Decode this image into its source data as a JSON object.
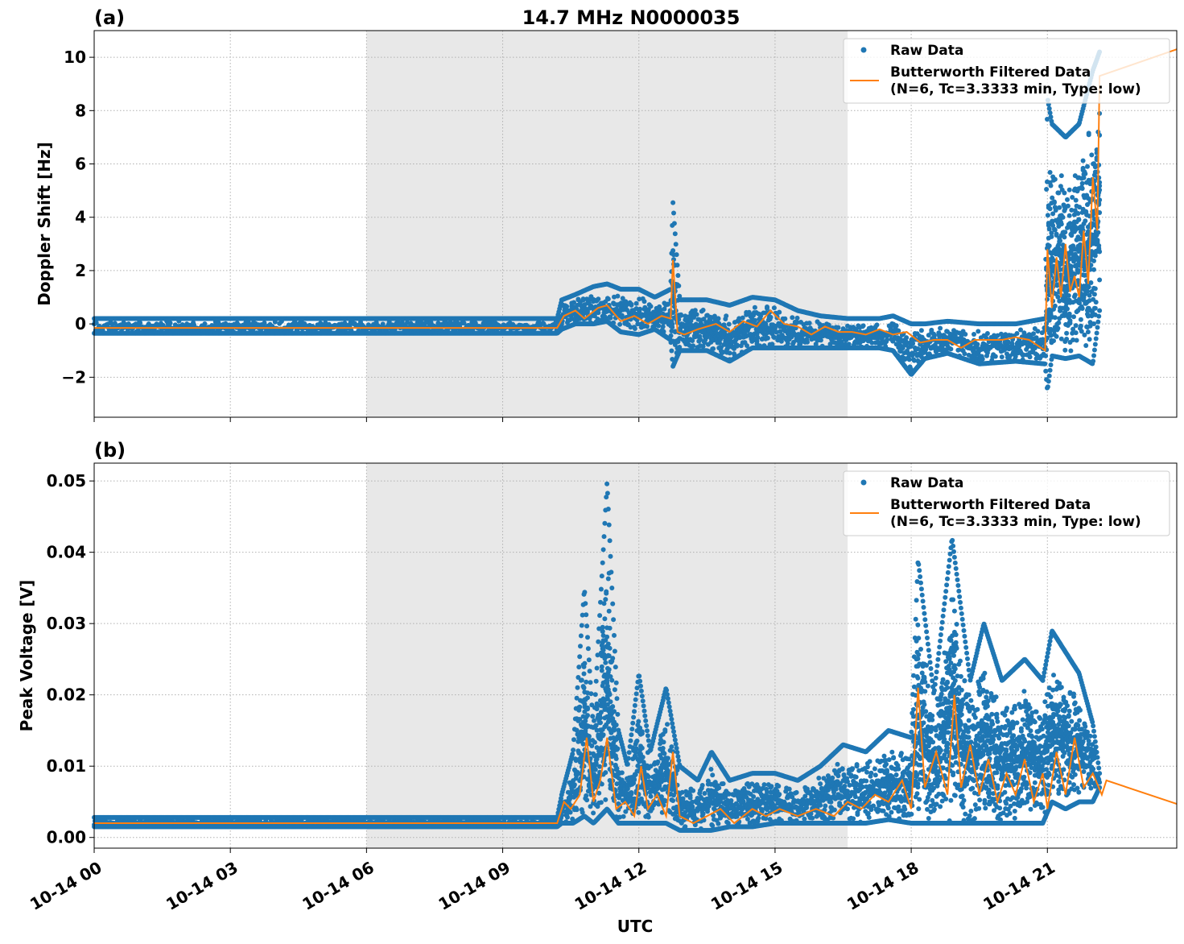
{
  "figure": {
    "title": "14.7 MHz N0000035",
    "xlabel": "UTC"
  },
  "colors": {
    "raw": "#1f77b4",
    "filtered": "#ff7f0e",
    "shade": "#e8e8e8",
    "grid": "#b0b0b0"
  },
  "chart_data": [
    {
      "type": "scatter",
      "panel_label": "(a)",
      "title": "14.7 MHz N0000035",
      "ylabel": "Doppler Shift [Hz]",
      "xlabel": "",
      "x_unit": "hours UTC on 10-14",
      "xlim": [
        0,
        23.85
      ],
      "ylim": [
        -3.5,
        11
      ],
      "yticks": [
        -2,
        0,
        2,
        4,
        6,
        8,
        10
      ],
      "ytick_labels": [
        "−2",
        "0",
        "2",
        "4",
        "6",
        "8",
        "10"
      ],
      "xticks": [
        0,
        3,
        6,
        9,
        12,
        15,
        18,
        21
      ],
      "xtick_labels": [
        "10-14 00",
        "10-14 03",
        "10-14 06",
        "10-14 09",
        "10-14 12",
        "10-14 15",
        "10-14 18",
        "10-14 21"
      ],
      "shaded_span": [
        6.0,
        16.6
      ],
      "grid": true,
      "legend": {
        "position": "top-right",
        "entries": [
          "Raw Data",
          "Butterworth Filtered Data",
          "(N=6, Tc=3.3333 min, Type: low)"
        ]
      },
      "series": [
        {
          "name": "Raw Data",
          "style": "markers",
          "envelope": {
            "x": [
              0,
              10.2,
              10.3,
              10.6,
              11,
              11.3,
              11.6,
              12,
              12.35,
              12.7,
              12.75,
              12.9,
              13.5,
              14,
              14.5,
              15,
              15.5,
              16,
              16.6,
              17.3,
              17.6,
              18,
              18.3,
              18.8,
              19.5,
              20.3,
              20.95,
              21.0,
              21.1,
              21.4,
              21.7,
              22.0,
              22.15
            ],
            "lo": [
              -0.35,
              -0.35,
              -0.2,
              0.0,
              0.0,
              0.1,
              -0.3,
              -0.4,
              -0.2,
              -0.6,
              -1.6,
              -1.0,
              -1.0,
              -1.4,
              -0.9,
              -0.9,
              -0.9,
              -0.9,
              -0.9,
              -0.9,
              -1.0,
              -1.9,
              -1.3,
              -1.1,
              -1.5,
              -1.4,
              -1.5,
              -2.5,
              -1.2,
              -1.3,
              -1.2,
              -1.5,
              0.5
            ],
            "hi": [
              0.2,
              0.2,
              0.9,
              1.1,
              1.4,
              1.5,
              1.3,
              1.3,
              1.0,
              1.3,
              4.6,
              0.9,
              0.9,
              0.7,
              1.0,
              0.9,
              0.5,
              0.3,
              0.2,
              0.2,
              0.3,
              0.0,
              0.0,
              0.1,
              0.0,
              0.0,
              0.2,
              8.5,
              7.5,
              7.0,
              7.5,
              9.5,
              10.2
            ]
          }
        },
        {
          "name": "Butterworth Filtered Data",
          "style": "line",
          "x": [
            0,
            2,
            4,
            6,
            8,
            10.2,
            10.35,
            10.6,
            10.8,
            11.1,
            11.3,
            11.6,
            11.9,
            12.2,
            12.5,
            12.7,
            12.75,
            12.85,
            13.0,
            13.3,
            13.7,
            14.0,
            14.3,
            14.6,
            14.9,
            15.2,
            15.5,
            15.8,
            16.1,
            16.4,
            16.7,
            17.0,
            17.3,
            17.6,
            17.9,
            18.2,
            18.5,
            18.8,
            19.1,
            19.4,
            19.7,
            20.0,
            20.3,
            20.6,
            20.95,
            21.0,
            21.1,
            21.2,
            21.3,
            21.4,
            21.5,
            21.6,
            21.7,
            21.8,
            21.9,
            22.0,
            22.1,
            22.15,
            23.85
          ],
          "y": [
            -0.15,
            -0.15,
            -0.15,
            -0.15,
            -0.15,
            -0.15,
            0.3,
            0.5,
            0.2,
            0.6,
            0.7,
            0.1,
            0.3,
            0.0,
            0.3,
            0.2,
            2.4,
            -0.3,
            -0.4,
            -0.2,
            0.0,
            -0.3,
            0.1,
            -0.1,
            0.5,
            0.0,
            -0.1,
            -0.4,
            -0.1,
            -0.3,
            -0.3,
            -0.4,
            -0.2,
            -0.4,
            -0.3,
            -0.7,
            -0.6,
            -0.6,
            -0.9,
            -0.6,
            -0.6,
            -0.6,
            -0.5,
            -0.6,
            -1.0,
            2.8,
            0.6,
            2.5,
            1.0,
            3.0,
            1.2,
            1.8,
            1.0,
            3.5,
            1.5,
            5.5,
            3.5,
            9.3,
            10.3
          ]
        }
      ]
    },
    {
      "type": "scatter",
      "panel_label": "(b)",
      "title": "",
      "ylabel": "Peak Voltage [V]",
      "xlabel": "UTC",
      "x_unit": "hours UTC on 10-14",
      "xlim": [
        0,
        23.85
      ],
      "ylim": [
        -0.0015,
        0.0525
      ],
      "yticks": [
        0.0,
        0.01,
        0.02,
        0.03,
        0.04,
        0.05
      ],
      "ytick_labels": [
        "0.00",
        "0.01",
        "0.02",
        "0.03",
        "0.04",
        "0.05"
      ],
      "xticks": [
        0,
        3,
        6,
        9,
        12,
        15,
        18,
        21
      ],
      "xtick_labels": [
        "10-14 00",
        "10-14 03",
        "10-14 06",
        "10-14 09",
        "10-14 12",
        "10-14 15",
        "10-14 18",
        "10-14 21"
      ],
      "shaded_span": [
        6.0,
        16.6
      ],
      "grid": true,
      "legend": {
        "position": "top-right",
        "entries": [
          "Raw Data",
          "Butterworth Filtered Data",
          "(N=6, Tc=3.3333 min, Type: low)"
        ]
      },
      "series": [
        {
          "name": "Raw Data",
          "style": "markers",
          "envelope": {
            "x": [
              0,
              10.2,
              10.3,
              10.55,
              10.8,
              11.0,
              11.3,
              11.55,
              11.75,
              12.0,
              12.25,
              12.6,
              12.9,
              13.3,
              13.6,
              14.0,
              14.5,
              15.0,
              15.5,
              16.0,
              16.5,
              17.0,
              17.5,
              18.0,
              18.15,
              18.5,
              18.9,
              19.3,
              19.6,
              20.0,
              20.5,
              20.9,
              21.1,
              21.4,
              21.7,
              22.0,
              22.15
            ],
            "lo": [
              0.0015,
              0.0015,
              0.002,
              0.002,
              0.003,
              0.002,
              0.004,
              0.002,
              0.002,
              0.002,
              0.002,
              0.002,
              0.001,
              0.001,
              0.001,
              0.0015,
              0.0015,
              0.002,
              0.002,
              0.002,
              0.002,
              0.002,
              0.0025,
              0.002,
              0.002,
              0.002,
              0.002,
              0.002,
              0.002,
              0.002,
              0.002,
              0.002,
              0.005,
              0.004,
              0.005,
              0.005,
              0.007
            ],
            "hi": [
              0.0028,
              0.0028,
              0.006,
              0.012,
              0.035,
              0.015,
              0.05,
              0.015,
              0.01,
              0.023,
              0.012,
              0.021,
              0.01,
              0.008,
              0.012,
              0.008,
              0.009,
              0.009,
              0.008,
              0.01,
              0.013,
              0.012,
              0.015,
              0.014,
              0.039,
              0.02,
              0.042,
              0.022,
              0.03,
              0.022,
              0.025,
              0.022,
              0.029,
              0.026,
              0.023,
              0.016,
              0.009
            ]
          }
        },
        {
          "name": "Butterworth Filtered Data",
          "style": "line",
          "x": [
            0,
            2,
            4,
            6,
            8,
            10.2,
            10.35,
            10.5,
            10.7,
            10.85,
            11.0,
            11.15,
            11.3,
            11.5,
            11.7,
            11.9,
            12.05,
            12.2,
            12.4,
            12.6,
            12.75,
            12.9,
            13.2,
            13.5,
            13.8,
            14.1,
            14.5,
            14.8,
            15.1,
            15.5,
            15.9,
            16.3,
            16.6,
            16.9,
            17.2,
            17.5,
            17.8,
            18.0,
            18.15,
            18.3,
            18.55,
            18.8,
            18.95,
            19.1,
            19.3,
            19.5,
            19.7,
            19.9,
            20.1,
            20.3,
            20.5,
            20.7,
            20.9,
            21.0,
            21.2,
            21.4,
            21.6,
            21.8,
            22.0,
            22.2,
            22.3,
            23.85
          ],
          "y": [
            0.002,
            0.002,
            0.002,
            0.002,
            0.002,
            0.002,
            0.005,
            0.004,
            0.006,
            0.014,
            0.005,
            0.008,
            0.014,
            0.004,
            0.005,
            0.003,
            0.01,
            0.004,
            0.006,
            0.003,
            0.012,
            0.003,
            0.002,
            0.003,
            0.004,
            0.002,
            0.004,
            0.003,
            0.004,
            0.003,
            0.004,
            0.003,
            0.005,
            0.004,
            0.006,
            0.005,
            0.008,
            0.004,
            0.021,
            0.007,
            0.012,
            0.006,
            0.02,
            0.007,
            0.013,
            0.006,
            0.011,
            0.005,
            0.009,
            0.006,
            0.011,
            0.005,
            0.009,
            0.004,
            0.012,
            0.006,
            0.014,
            0.007,
            0.009,
            0.006,
            0.008,
            0.0047
          ]
        }
      ]
    }
  ]
}
